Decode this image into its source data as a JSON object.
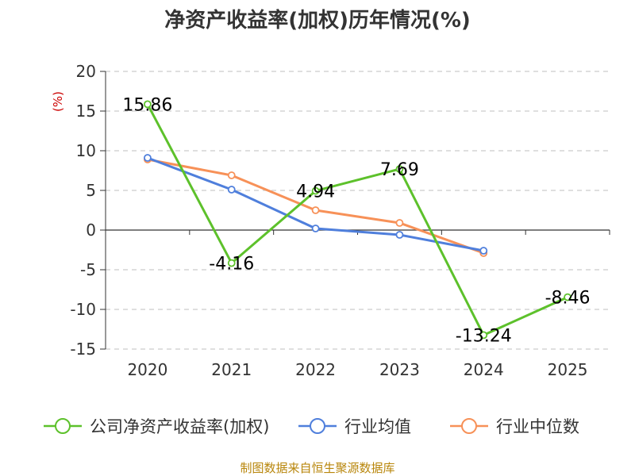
{
  "chart_data": {
    "type": "line",
    "title": "净资产收益率(加权)历年情况(%)",
    "ylabel": "(%)",
    "xlabel": "",
    "categories": [
      "2020",
      "2021",
      "2022",
      "2023",
      "2024",
      "2025"
    ],
    "yticks": [
      20,
      15,
      10,
      5,
      0,
      -5,
      -10,
      -15
    ],
    "ylim": [
      -15,
      20
    ],
    "grid": true,
    "legend_position": "bottom",
    "series": [
      {
        "name": "公司净资产收益率(加权)",
        "color": "#5dc12b",
        "values": [
          15.86,
          -4.16,
          4.94,
          7.69,
          -13.24,
          -8.46
        ],
        "labels": [
          "15.86",
          "-4.16",
          "4.94",
          "7.69",
          "-13.24",
          "-8.46"
        ]
      },
      {
        "name": "行业均值",
        "color": "#4f7fdc",
        "values": [
          9.1,
          5.1,
          0.2,
          -0.6,
          -2.6,
          null
        ]
      },
      {
        "name": "行业中位数",
        "color": "#f79158",
        "values": [
          8.9,
          6.9,
          2.5,
          0.9,
          -2.9,
          null
        ]
      }
    ],
    "source": "制图数据来自恒生聚源数据库"
  }
}
